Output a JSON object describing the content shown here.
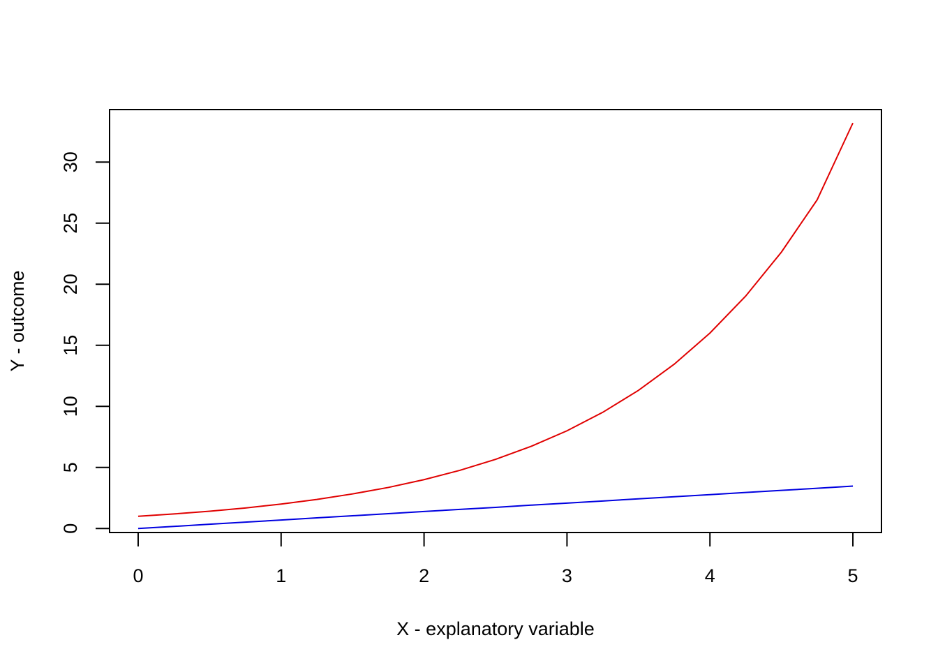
{
  "chart_data": {
    "type": "line",
    "title": "",
    "xlabel": "X - explanatory variable",
    "ylabel": "Y - outcome",
    "xlim": [
      -0.2,
      5.2
    ],
    "ylim": [
      -0.33,
      34.3
    ],
    "x_ticks": [
      0,
      1,
      2,
      3,
      4,
      5
    ],
    "x_tick_labels": [
      "0",
      "1",
      "2",
      "3",
      "4",
      "5"
    ],
    "y_ticks": [
      0,
      5,
      10,
      15,
      20,
      25,
      30
    ],
    "y_tick_labels": [
      "0",
      "5",
      "10",
      "15",
      "20",
      "25",
      "30"
    ],
    "grid": false,
    "legend": "none",
    "x": [
      0,
      0.25,
      0.5,
      0.75,
      1,
      1.25,
      1.5,
      1.75,
      2,
      2.25,
      2.5,
      2.75,
      3,
      3.25,
      3.5,
      3.75,
      4,
      4.25,
      4.5,
      4.75,
      5
    ],
    "series": [
      {
        "color": "#e00000",
        "values": [
          1,
          1.19,
          1.41,
          1.68,
          2,
          2.38,
          2.83,
          3.36,
          4,
          4.76,
          5.66,
          6.73,
          8,
          9.51,
          11.31,
          13.45,
          16,
          19.03,
          22.63,
          26.91,
          33.2
        ]
      },
      {
        "color": "#0000e0",
        "values": [
          0,
          0.17,
          0.35,
          0.52,
          0.69,
          0.87,
          1.04,
          1.21,
          1.39,
          1.56,
          1.73,
          1.91,
          2.08,
          2.25,
          2.43,
          2.6,
          2.77,
          2.95,
          3.12,
          3.29,
          3.47
        ]
      }
    ]
  }
}
